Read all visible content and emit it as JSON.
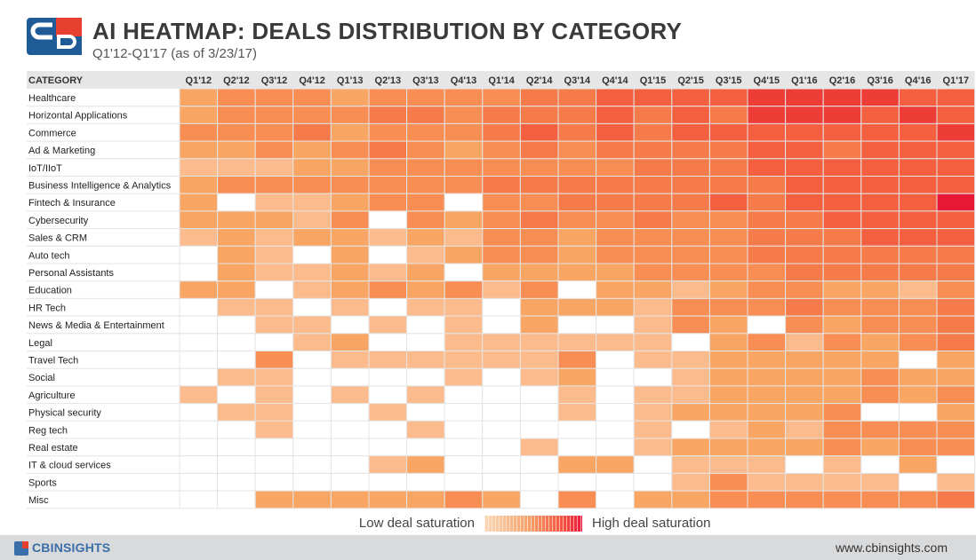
{
  "header": {
    "title": "AI HEATMAP: DEALS DISTRIBUTION BY CATEGORY",
    "subtitle": "Q1'12-Q1'17 (as of 3/23/17)"
  },
  "colors": {
    "scale": [
      "#ffffff",
      "#fcd6b4",
      "#fbbb8c",
      "#f9a564",
      "#f88e54",
      "#f67b4a",
      "#f35f3f",
      "#ee3c36",
      "#e81736"
    ],
    "legend_low": "#fbd8b6",
    "legend_high": "#ea1a3b"
  },
  "chart_data": {
    "type": "heatmap",
    "title": "AI HEATMAP: DEALS DISTRIBUTION BY CATEGORY",
    "subtitle": "Q1'12-Q1'17 (as of 3/23/17)",
    "row_header": "CATEGORY",
    "columns": [
      "Q1'12",
      "Q2'12",
      "Q3'12",
      "Q4'12",
      "Q1'13",
      "Q2'13",
      "Q3'13",
      "Q4'13",
      "Q1'14",
      "Q2'14",
      "Q3'14",
      "Q4'14",
      "Q1'15",
      "Q2'15",
      "Q3'15",
      "Q4'15",
      "Q1'16",
      "Q2'16",
      "Q3'16",
      "Q4'16",
      "Q1'17"
    ],
    "rows": [
      "Healthcare",
      "Horizontal Applications",
      "Commerce",
      "Ad & Marketing",
      "IoT/IIoT",
      "Business Intelligence & Analytics",
      "Fintech & Insurance",
      "Cybersecurity",
      "Sales & CRM",
      "Auto tech",
      "Personal Assistants",
      "Education",
      "HR Tech",
      "News & Media & Entertainment",
      "Legal",
      "Travel Tech",
      "Social",
      "Agriculture",
      "Physical security",
      "Reg tech",
      "Real estate",
      "IT & cloud services",
      "Sports",
      "Misc"
    ],
    "values": [
      [
        3,
        4,
        4,
        4,
        3,
        4,
        4,
        4,
        4,
        5,
        5,
        6,
        6,
        6,
        6,
        7,
        7,
        7,
        7,
        6,
        6
      ],
      [
        3,
        4,
        4,
        4,
        4,
        5,
        5,
        4,
        5,
        5,
        5,
        6,
        5,
        6,
        5,
        7,
        7,
        7,
        6,
        7,
        6
      ],
      [
        4,
        4,
        4,
        5,
        3,
        4,
        4,
        4,
        5,
        6,
        5,
        6,
        5,
        6,
        6,
        6,
        6,
        6,
        6,
        6,
        7
      ],
      [
        3,
        3,
        4,
        3,
        4,
        5,
        4,
        3,
        4,
        5,
        4,
        5,
        5,
        5,
        5,
        6,
        6,
        5,
        6,
        6,
        6
      ],
      [
        2,
        2,
        2,
        3,
        3,
        4,
        4,
        4,
        4,
        4,
        4,
        4,
        5,
        5,
        5,
        6,
        6,
        6,
        6,
        6,
        6
      ],
      [
        3,
        4,
        4,
        4,
        4,
        4,
        4,
        4,
        5,
        5,
        5,
        5,
        5,
        5,
        5,
        5,
        6,
        6,
        6,
        6,
        6
      ],
      [
        3,
        0,
        2,
        2,
        3,
        4,
        4,
        0,
        4,
        4,
        5,
        5,
        5,
        5,
        6,
        5,
        6,
        6,
        6,
        6,
        8
      ],
      [
        3,
        3,
        3,
        2,
        4,
        0,
        4,
        3,
        4,
        5,
        4,
        4,
        5,
        4,
        4,
        5,
        5,
        6,
        6,
        6,
        6
      ],
      [
        2,
        3,
        2,
        3,
        3,
        2,
        3,
        2,
        4,
        4,
        3,
        4,
        4,
        4,
        4,
        5,
        5,
        5,
        6,
        6,
        6
      ],
      [
        0,
        3,
        2,
        0,
        3,
        0,
        2,
        3,
        4,
        4,
        3,
        4,
        4,
        4,
        4,
        5,
        5,
        5,
        5,
        5,
        5
      ],
      [
        0,
        3,
        2,
        2,
        3,
        2,
        3,
        0,
        3,
        3,
        3,
        3,
        4,
        4,
        4,
        4,
        5,
        5,
        5,
        5,
        5
      ],
      [
        3,
        3,
        0,
        2,
        3,
        4,
        3,
        4,
        2,
        4,
        0,
        3,
        3,
        2,
        3,
        4,
        4,
        3,
        3,
        2,
        4
      ],
      [
        0,
        2,
        2,
        0,
        2,
        0,
        2,
        2,
        0,
        3,
        3,
        3,
        2,
        4,
        4,
        4,
        5,
        4,
        4,
        4,
        5
      ],
      [
        0,
        0,
        2,
        2,
        0,
        2,
        0,
        2,
        0,
        3,
        0,
        0,
        2,
        4,
        3,
        0,
        4,
        3,
        4,
        4,
        5
      ],
      [
        0,
        0,
        0,
        2,
        3,
        0,
        0,
        2,
        2,
        2,
        2,
        2,
        2,
        0,
        3,
        4,
        2,
        4,
        3,
        4,
        5
      ],
      [
        0,
        0,
        4,
        0,
        2,
        2,
        2,
        2,
        2,
        2,
        4,
        0,
        2,
        2,
        3,
        3,
        3,
        3,
        3,
        0,
        3
      ],
      [
        0,
        2,
        2,
        0,
        0,
        0,
        0,
        2,
        0,
        2,
        3,
        0,
        0,
        2,
        3,
        3,
        3,
        3,
        4,
        3,
        3
      ],
      [
        2,
        0,
        2,
        0,
        2,
        0,
        2,
        0,
        0,
        0,
        2,
        0,
        2,
        2,
        3,
        3,
        3,
        3,
        4,
        3,
        4
      ],
      [
        0,
        2,
        2,
        0,
        0,
        2,
        0,
        0,
        0,
        0,
        2,
        0,
        2,
        3,
        3,
        3,
        3,
        4,
        0,
        0,
        3
      ],
      [
        0,
        0,
        2,
        0,
        0,
        0,
        2,
        0,
        0,
        0,
        0,
        0,
        2,
        0,
        2,
        3,
        2,
        4,
        4,
        4,
        4
      ],
      [
        0,
        0,
        0,
        0,
        0,
        0,
        0,
        0,
        0,
        2,
        0,
        0,
        2,
        3,
        3,
        3,
        3,
        4,
        3,
        4,
        4
      ],
      [
        0,
        0,
        0,
        0,
        0,
        2,
        3,
        0,
        0,
        0,
        3,
        3,
        0,
        2,
        2,
        2,
        0,
        2,
        0,
        3,
        0
      ],
      [
        0,
        0,
        0,
        0,
        0,
        0,
        0,
        0,
        0,
        0,
        0,
        0,
        0,
        2,
        4,
        2,
        2,
        2,
        2,
        0,
        2
      ],
      [
        0,
        0,
        3,
        3,
        3,
        3,
        3,
        4,
        3,
        0,
        4,
        0,
        3,
        3,
        4,
        4,
        4,
        4,
        4,
        4,
        5
      ]
    ],
    "value_scale": "ordinal deal saturation, 0 = no deals, 8 = highest",
    "legend": {
      "low": "Low deal saturation",
      "high": "High deal saturation",
      "placement": "bottom-center"
    }
  },
  "footer": {
    "brand": "CBINSIGHTS",
    "url": "www.cbinsights.com"
  }
}
